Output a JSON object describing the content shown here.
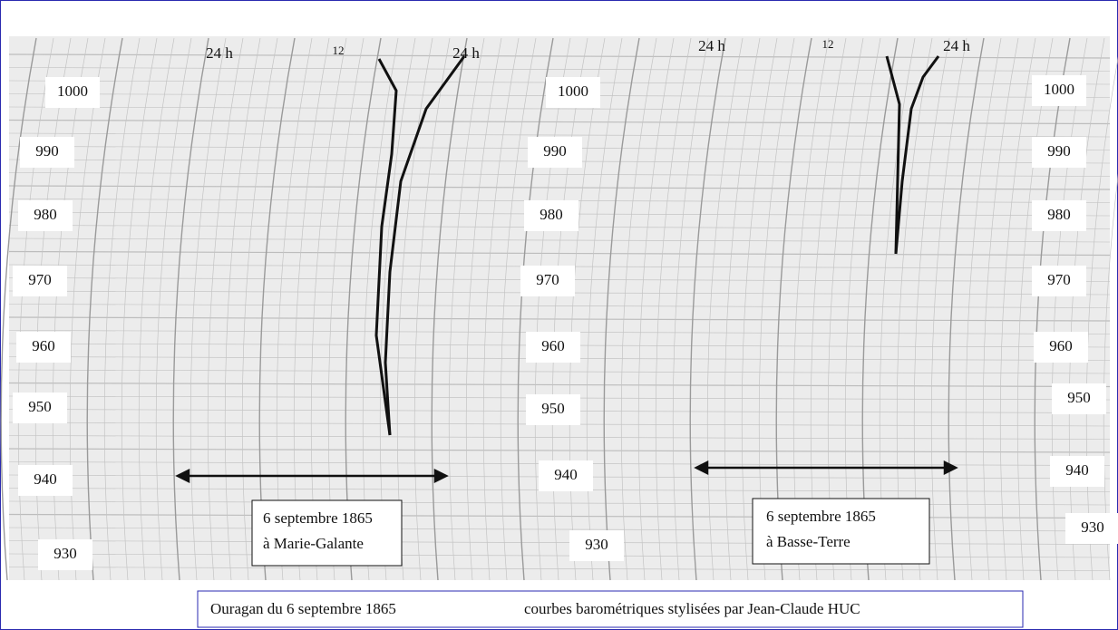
{
  "panels": [
    {
      "hour_labels": [
        "24 h",
        "12",
        "24 h"
      ],
      "box": [
        "6 septembre 1865",
        "à Marie-Galante"
      ]
    },
    {
      "hour_labels": [
        "24 h",
        "12",
        "24 h"
      ],
      "box": [
        "6 septembre 1865",
        "à Basse-Terre"
      ]
    }
  ],
  "pressure_columns": [
    [
      "1000",
      "990",
      "980",
      "970",
      "960",
      "950",
      "940",
      "930"
    ],
    [
      "1000",
      "990",
      "980",
      "970",
      "960",
      "950",
      "940",
      "930"
    ],
    [
      "1000",
      "990",
      "980",
      "970",
      "960",
      "950",
      "940",
      "930"
    ]
  ],
  "caption": [
    "Ouragan du 6 septembre 1865",
    "courbes barométriques stylisées par Jean-Claude HUC"
  ]
}
